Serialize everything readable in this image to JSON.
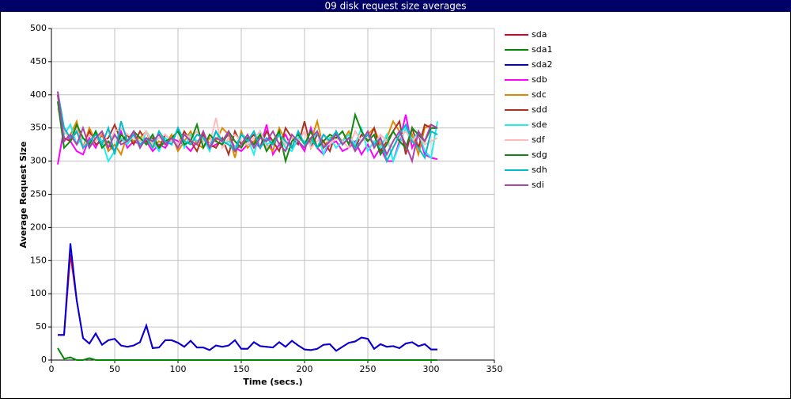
{
  "chart_data": {
    "type": "line",
    "title": "09 disk request size averages",
    "x_label": "Time (secs.)",
    "y_label": "Average Request Size",
    "xlim": [
      0,
      350
    ],
    "xticks": [
      0,
      50,
      100,
      150,
      200,
      250,
      300,
      350
    ],
    "ylim": [
      0,
      500
    ],
    "yticks": [
      0,
      50,
      100,
      150,
      200,
      250,
      300,
      350,
      400,
      450,
      500
    ],
    "grid": true,
    "legend": "right",
    "x": [
      5,
      10,
      15,
      20,
      25,
      30,
      35,
      40,
      45,
      50,
      55,
      60,
      65,
      70,
      75,
      80,
      85,
      90,
      95,
      100,
      105,
      110,
      115,
      120,
      125,
      130,
      135,
      140,
      145,
      150,
      155,
      160,
      165,
      170,
      175,
      180,
      185,
      190,
      195,
      200,
      205,
      210,
      215,
      220,
      225,
      230,
      235,
      240,
      245,
      250,
      255,
      260,
      265,
      270,
      275,
      280,
      285,
      290,
      295,
      300,
      305
    ],
    "series": [
      {
        "name": "sda",
        "color": "#dd0022",
        "values": [
          38,
          38,
          160,
          90,
          33,
          25,
          40,
          23,
          30,
          32,
          22,
          20,
          22,
          27,
          52,
          18,
          19,
          30,
          30,
          26,
          20,
          29,
          19,
          19,
          15,
          22,
          20,
          22,
          30,
          17,
          17,
          27,
          21,
          20,
          19,
          27,
          20,
          29,
          22,
          16,
          15,
          17,
          23,
          24,
          14,
          20,
          26,
          28,
          34,
          32,
          17,
          24,
          20,
          21,
          18,
          25,
          27,
          21,
          24,
          16,
          16
        ]
      },
      {
        "name": "sda1",
        "color": "#008800",
        "values": [
          18,
          2,
          4,
          0,
          0,
          3,
          0,
          0,
          0,
          0,
          0,
          0,
          0,
          0,
          0,
          0,
          0,
          0,
          0,
          0,
          0,
          0,
          0,
          0,
          0,
          0,
          0,
          0,
          0,
          0,
          0,
          0,
          0,
          0,
          0,
          0,
          0,
          0,
          0,
          0,
          0,
          0,
          0,
          0,
          0,
          0,
          0,
          0,
          0,
          0,
          0,
          0,
          0,
          0,
          0,
          0,
          0,
          0,
          0,
          0,
          0
        ]
      },
      {
        "name": "sda2",
        "color": "#0000dd",
        "values": [
          38,
          38,
          176,
          90,
          33,
          25,
          40,
          23,
          30,
          32,
          22,
          20,
          22,
          27,
          52,
          18,
          19,
          30,
          30,
          26,
          20,
          29,
          19,
          19,
          15,
          22,
          20,
          22,
          30,
          17,
          17,
          27,
          21,
          20,
          19,
          27,
          20,
          29,
          22,
          16,
          15,
          17,
          23,
          24,
          14,
          20,
          26,
          28,
          34,
          32,
          17,
          24,
          20,
          21,
          18,
          25,
          27,
          21,
          24,
          16,
          16
        ]
      },
      {
        "name": "sdb",
        "color": "#ff00ff",
        "values": [
          295,
          350,
          330,
          315,
          310,
          335,
          320,
          340,
          325,
          315,
          345,
          320,
          330,
          325,
          330,
          315,
          325,
          320,
          335,
          330,
          325,
          315,
          330,
          335,
          320,
          325,
          330,
          340,
          320,
          315,
          325,
          330,
          320,
          355,
          310,
          325,
          340,
          320,
          330,
          315,
          350,
          320,
          310,
          325,
          330,
          315,
          320,
          330,
          310,
          325,
          305,
          320,
          300,
          300,
          330,
          370,
          320,
          340,
          310,
          305,
          303
        ]
      },
      {
        "name": "sdc",
        "color": "#dd8800",
        "values": [
          400,
          330,
          340,
          360,
          320,
          350,
          330,
          340,
          315,
          325,
          310,
          340,
          330,
          335,
          345,
          320,
          330,
          325,
          340,
          315,
          330,
          345,
          325,
          320,
          335,
          330,
          350,
          340,
          305,
          345,
          320,
          330,
          340,
          325,
          315,
          350,
          330,
          320,
          345,
          325,
          330,
          360,
          320,
          335,
          340,
          330,
          345,
          320,
          330,
          340,
          350,
          325,
          335,
          360,
          345,
          320,
          340,
          310,
          350,
          355,
          350
        ]
      },
      {
        "name": "sdd",
        "color": "#aa3322",
        "values": [
          400,
          335,
          330,
          345,
          320,
          345,
          325,
          330,
          335,
          355,
          330,
          340,
          325,
          345,
          330,
          335,
          320,
          340,
          330,
          325,
          345,
          330,
          315,
          340,
          325,
          320,
          335,
          310,
          345,
          325,
          330,
          340,
          320,
          345,
          330,
          315,
          350,
          335,
          325,
          360,
          320,
          340,
          330,
          315,
          345,
          325,
          335,
          320,
          340,
          330,
          350,
          315,
          330,
          345,
          360,
          310,
          350,
          320,
          355,
          350,
          350
        ]
      },
      {
        "name": "sde",
        "color": "#22eeee",
        "values": [
          390,
          340,
          355,
          325,
          335,
          320,
          345,
          330,
          300,
          315,
          335,
          325,
          340,
          320,
          345,
          330,
          315,
          335,
          325,
          350,
          320,
          340,
          330,
          335,
          315,
          345,
          325,
          330,
          320,
          340,
          335,
          310,
          345,
          325,
          330,
          340,
          320,
          315,
          335,
          330,
          325,
          345,
          310,
          335,
          320,
          330,
          340,
          325,
          350,
          315,
          330,
          320,
          340,
          300,
          325,
          350,
          330,
          345,
          315,
          305,
          360
        ]
      },
      {
        "name": "sdf",
        "color": "#ffbbbb",
        "values": [
          380,
          345,
          335,
          350,
          320,
          340,
          330,
          345,
          325,
          345,
          350,
          340,
          335,
          330,
          345,
          325,
          335,
          340,
          330,
          325,
          340,
          335,
          345,
          330,
          325,
          365,
          320,
          335,
          340,
          330,
          325,
          335,
          345,
          320,
          330,
          340,
          325,
          335,
          330,
          345,
          320,
          330,
          340,
          325,
          335,
          330,
          320,
          345,
          330,
          335,
          325,
          340,
          330,
          320,
          335,
          345,
          330,
          340,
          325,
          330,
          335
        ]
      },
      {
        "name": "sdg",
        "color": "#118811",
        "values": [
          390,
          320,
          330,
          355,
          335,
          325,
          345,
          320,
          330,
          315,
          340,
          330,
          345,
          335,
          325,
          340,
          320,
          330,
          335,
          345,
          325,
          330,
          355,
          320,
          340,
          330,
          325,
          345,
          330,
          320,
          335,
          325,
          340,
          315,
          330,
          345,
          300,
          330,
          340,
          325,
          345,
          320,
          330,
          340,
          335,
          345,
          325,
          370,
          345,
          330,
          340,
          310,
          325,
          345,
          330,
          320,
          350,
          340,
          330,
          350,
          350
        ]
      },
      {
        "name": "sdh",
        "color": "#00bbcc",
        "values": [
          405,
          350,
          335,
          345,
          320,
          330,
          340,
          325,
          350,
          310,
          360,
          330,
          340,
          325,
          335,
          320,
          345,
          330,
          325,
          350,
          330,
          325,
          340,
          335,
          320,
          345,
          330,
          325,
          315,
          340,
          330,
          345,
          320,
          335,
          325,
          340,
          330,
          320,
          345,
          325,
          335,
          320,
          340,
          330,
          345,
          325,
          335,
          320,
          330,
          340,
          325,
          335,
          300,
          320,
          340,
          355,
          330,
          320,
          305,
          345,
          340
        ]
      },
      {
        "name": "sdi",
        "color": "#aa44aa",
        "values": [
          405,
          330,
          340,
          325,
          350,
          320,
          335,
          345,
          320,
          340,
          325,
          330,
          345,
          320,
          335,
          330,
          340,
          325,
          335,
          320,
          340,
          330,
          325,
          345,
          320,
          335,
          330,
          345,
          315,
          325,
          340,
          320,
          335,
          330,
          345,
          325,
          315,
          340,
          330,
          320,
          335,
          345,
          320,
          330,
          340,
          325,
          335,
          315,
          330,
          345,
          320,
          335,
          310,
          330,
          345,
          325,
          300,
          345,
          330,
          355,
          350
        ]
      }
    ]
  }
}
